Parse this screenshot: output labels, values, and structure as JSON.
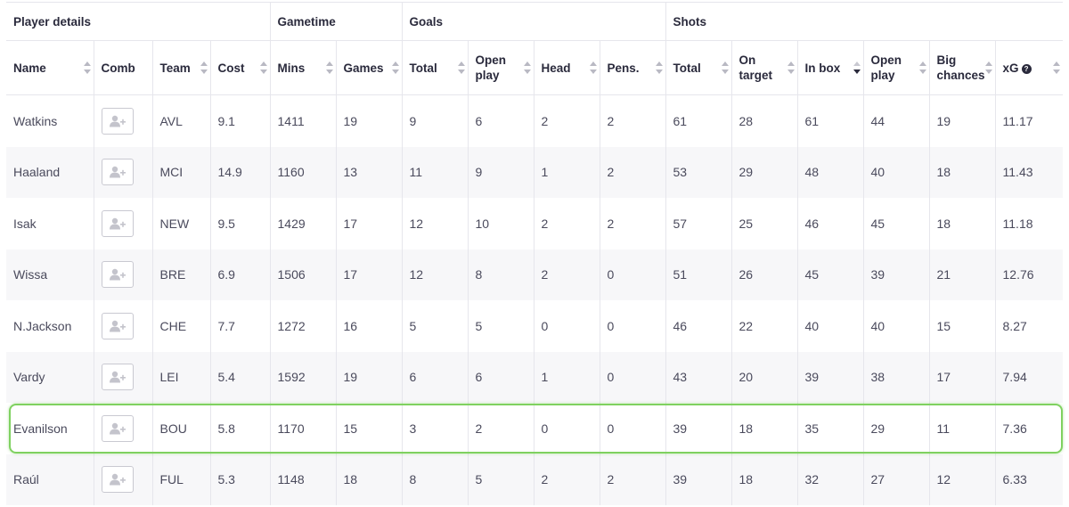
{
  "groups": [
    {
      "label": "Player details",
      "span": 4
    },
    {
      "label": "Gametime",
      "span": 2
    },
    {
      "label": "Goals",
      "span": 4
    },
    {
      "label": "Shots",
      "span": 6
    }
  ],
  "columns": [
    {
      "key": "name",
      "line1": "Name",
      "line2": "",
      "sortable": true
    },
    {
      "key": "comb",
      "line1": "Comb",
      "line2": "",
      "sortable": false
    },
    {
      "key": "team",
      "line1": "Team",
      "line2": "",
      "sortable": true
    },
    {
      "key": "cost",
      "line1": "Cost",
      "line2": "",
      "sortable": true
    },
    {
      "key": "mins",
      "line1": "Mins",
      "line2": "",
      "sortable": true
    },
    {
      "key": "games",
      "line1": "Games",
      "line2": "",
      "sortable": true
    },
    {
      "key": "goals_total",
      "line1": "Total",
      "line2": "",
      "sortable": true
    },
    {
      "key": "goals_open_play",
      "line1": "Open",
      "line2": "play",
      "sortable": true
    },
    {
      "key": "head",
      "line1": "Head",
      "line2": "",
      "sortable": true
    },
    {
      "key": "pens",
      "line1": "Pens.",
      "line2": "",
      "sortable": true
    },
    {
      "key": "shots_total",
      "line1": "Total",
      "line2": "",
      "sortable": true
    },
    {
      "key": "on_target",
      "line1": "On",
      "line2": "target",
      "sortable": true
    },
    {
      "key": "in_box",
      "line1": "In box",
      "line2": "",
      "sortable": true,
      "active": true
    },
    {
      "key": "shots_open_play",
      "line1": "Open",
      "line2": "play",
      "sortable": true
    },
    {
      "key": "big_chances",
      "line1": "Big",
      "line2": "chances",
      "sortable": true
    },
    {
      "key": "xg",
      "line1": "xG",
      "line2": "",
      "sortable": true,
      "help": true
    }
  ],
  "rows": [
    [
      "Watkins",
      "",
      "AVL",
      "9.1",
      "1411",
      "19",
      "9",
      "6",
      "2",
      "2",
      "61",
      "28",
      "61",
      "44",
      "19",
      "11.17"
    ],
    [
      "Haaland",
      "",
      "MCI",
      "14.9",
      "1160",
      "13",
      "11",
      "9",
      "1",
      "2",
      "53",
      "29",
      "48",
      "40",
      "18",
      "11.43"
    ],
    [
      "Isak",
      "",
      "NEW",
      "9.5",
      "1429",
      "17",
      "12",
      "10",
      "2",
      "2",
      "57",
      "25",
      "46",
      "45",
      "18",
      "11.18"
    ],
    [
      "Wissa",
      "",
      "BRE",
      "6.9",
      "1506",
      "17",
      "12",
      "8",
      "2",
      "0",
      "51",
      "26",
      "45",
      "39",
      "21",
      "12.76"
    ],
    [
      "N.Jackson",
      "",
      "CHE",
      "7.7",
      "1272",
      "16",
      "5",
      "5",
      "0",
      "0",
      "46",
      "22",
      "40",
      "40",
      "15",
      "8.27"
    ],
    [
      "Vardy",
      "",
      "LEI",
      "5.4",
      "1592",
      "19",
      "6",
      "6",
      "1",
      "0",
      "43",
      "20",
      "39",
      "38",
      "17",
      "7.94"
    ],
    [
      "Evanilson",
      "",
      "BOU",
      "5.8",
      "1170",
      "15",
      "3",
      "2",
      "0",
      "0",
      "39",
      "18",
      "35",
      "29",
      "11",
      "7.36"
    ],
    [
      "Raúl",
      "",
      "FUL",
      "5.3",
      "1148",
      "18",
      "8",
      "5",
      "2",
      "2",
      "39",
      "18",
      "32",
      "27",
      "12",
      "6.33"
    ]
  ],
  "highlighted_row": 6,
  "colors": {
    "highlight": "#7fd160",
    "row_alt": "#f7f7f9",
    "border": "#e6e6ec"
  }
}
